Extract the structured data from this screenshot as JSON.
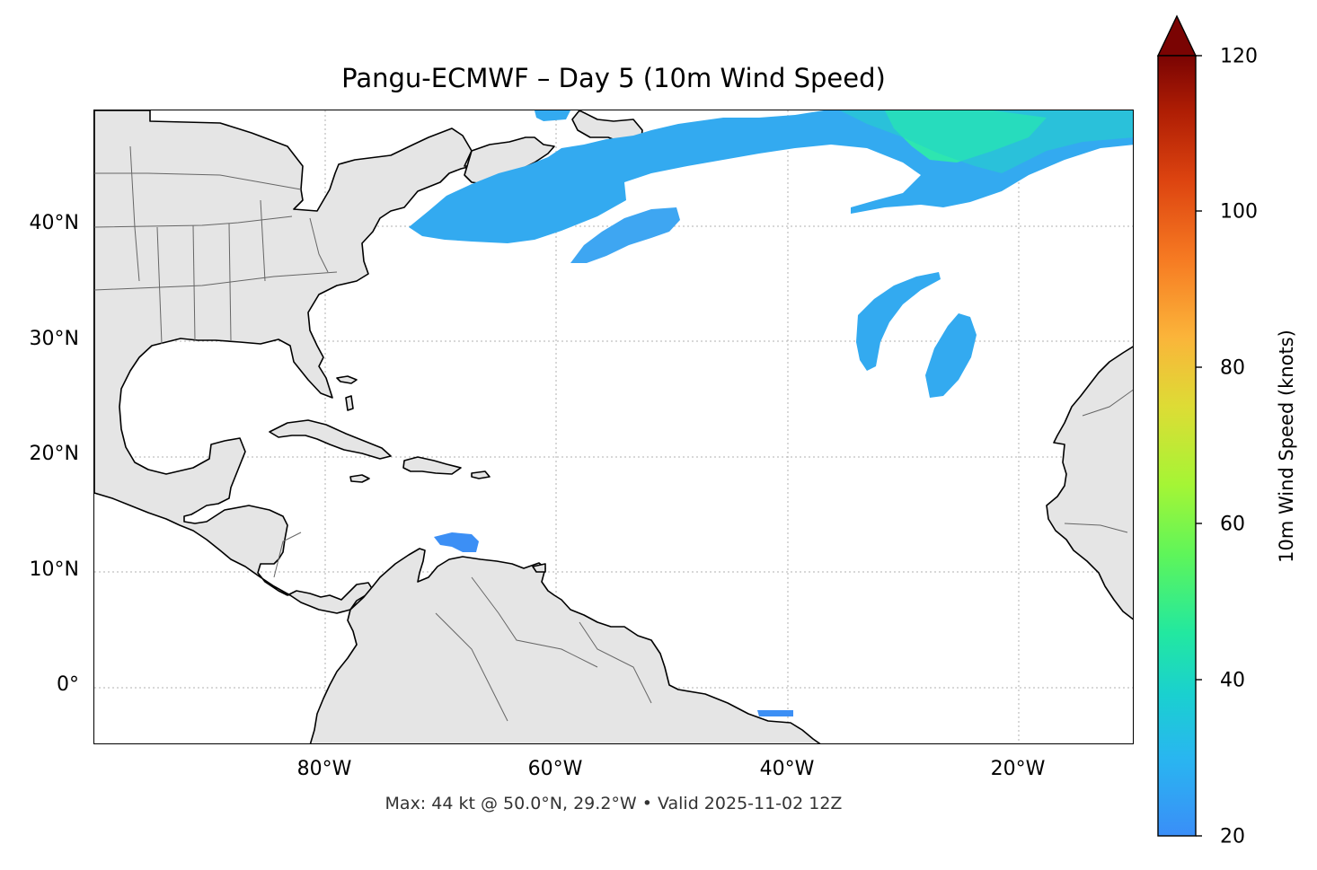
{
  "title": "Pangu-ECMWF – Day 5 (10m Wind Speed)",
  "footer": "Max: 44 kt @ 50.0°N, 29.2°W • Valid 2025-11-02 12Z",
  "map": {
    "extent_lon": [
      -100,
      -10
    ],
    "extent_lat": [
      -5,
      50
    ],
    "land_color": "#e5e5e5",
    "ocean_color": "#ffffff",
    "gridlines": "dotted",
    "lat_ticks": [
      {
        "label": "40°N",
        "value": 40
      },
      {
        "label": "30°N",
        "value": 30
      },
      {
        "label": "20°N",
        "value": 20
      },
      {
        "label": "10°N",
        "value": 10
      },
      {
        "label": "0°",
        "value": 0
      }
    ],
    "lon_ticks": [
      {
        "label": "80°W",
        "value": -80
      },
      {
        "label": "60°W",
        "value": -60
      },
      {
        "label": "40°W",
        "value": -40
      },
      {
        "label": "20°W",
        "value": -20
      }
    ]
  },
  "colorbar": {
    "label": "10m Wind Speed (knots)",
    "min": 20,
    "max": 120,
    "extend": "max",
    "ticks": [
      "20",
      "40",
      "60",
      "80",
      "100",
      "120"
    ],
    "colormap": "turbo"
  }
}
